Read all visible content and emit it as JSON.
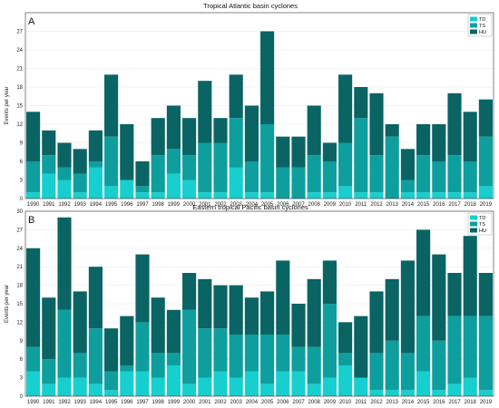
{
  "colors": {
    "TD": "#17cfcf",
    "TS": "#0f9e9e",
    "HU": "#0a6464"
  },
  "chart_data": [
    {
      "type": "bar",
      "stacked": true,
      "panel_label": "A",
      "title": "Tropical Atlantic basin cyclones",
      "ylabel": "Events per year",
      "ylim": [
        0,
        30
      ],
      "yticks": [
        0,
        3,
        6,
        9,
        12,
        15,
        18,
        21,
        24,
        27
      ],
      "legend": "top-right",
      "categories": [
        "1990",
        "1991",
        "1992",
        "1993",
        "1994",
        "1995",
        "1996",
        "1997",
        "1998",
        "1999",
        "2000",
        "2001",
        "2002",
        "2003",
        "2004",
        "2005",
        "2006",
        "2007",
        "2008",
        "2009",
        "2010",
        "2011",
        "2012",
        "2013",
        "2014",
        "2015",
        "2016",
        "2017",
        "2018",
        "2019"
      ],
      "series": [
        {
          "name": "TD",
          "values": [
            1,
            4,
            3,
            1,
            5,
            2,
            3,
            1,
            1,
            4,
            3,
            1,
            1,
            5,
            1,
            1,
            0,
            0,
            1,
            1,
            2,
            1,
            1,
            0,
            1,
            1,
            1,
            1,
            1,
            2
          ]
        },
        {
          "name": "TS",
          "values": [
            5,
            3,
            2,
            3,
            1,
            8,
            0,
            1,
            6,
            4,
            4,
            8,
            8,
            8,
            5,
            11,
            5,
            5,
            6,
            5,
            7,
            12,
            6,
            10,
            2,
            6,
            5,
            6,
            5,
            8
          ]
        },
        {
          "name": "HU",
          "values": [
            8,
            4,
            4,
            4,
            5,
            10,
            9,
            4,
            6,
            7,
            6,
            10,
            4,
            7,
            9,
            15,
            5,
            5,
            8,
            3,
            11,
            5,
            10,
            2,
            5,
            5,
            6,
            10,
            8,
            6
          ]
        }
      ]
    },
    {
      "type": "bar",
      "stacked": true,
      "panel_label": "B",
      "title": "Eastern tropical Pacific basin cyclones",
      "ylabel": "Events per year",
      "ylim": [
        0,
        30
      ],
      "yticks": [
        0,
        3,
        6,
        9,
        12,
        15,
        18,
        21,
        24,
        27,
        30
      ],
      "legend": "top-right",
      "categories": [
        "1990",
        "1991",
        "1992",
        "1993",
        "1994",
        "1995",
        "1996",
        "1997",
        "1998",
        "1999",
        "2000",
        "2001",
        "2002",
        "2003",
        "2004",
        "2005",
        "2006",
        "2007",
        "2008",
        "2009",
        "2010",
        "2011",
        "2012",
        "2013",
        "2014",
        "2015",
        "2016",
        "2017",
        "2018",
        "2019"
      ],
      "series": [
        {
          "name": "TD",
          "values": [
            4,
            2,
            3,
            3,
            2,
            1,
            4,
            4,
            3,
            5,
            2,
            3,
            4,
            3,
            4,
            2,
            4,
            4,
            2,
            3,
            5,
            3,
            1,
            1,
            1,
            4,
            1,
            2,
            3,
            1
          ]
        },
        {
          "name": "TS",
          "values": [
            4,
            4,
            11,
            4,
            9,
            3,
            1,
            8,
            4,
            2,
            12,
            8,
            7,
            7,
            6,
            8,
            6,
            4,
            6,
            12,
            2,
            0,
            6,
            8,
            6,
            9,
            8,
            11,
            10,
            12
          ]
        },
        {
          "name": "HU",
          "values": [
            16,
            10,
            15,
            10,
            10,
            7,
            8,
            11,
            9,
            7,
            6,
            8,
            7,
            8,
            6,
            7,
            12,
            7,
            11,
            7,
            5,
            10,
            10,
            10,
            15,
            14,
            14,
            7,
            13,
            7
          ]
        }
      ]
    }
  ]
}
